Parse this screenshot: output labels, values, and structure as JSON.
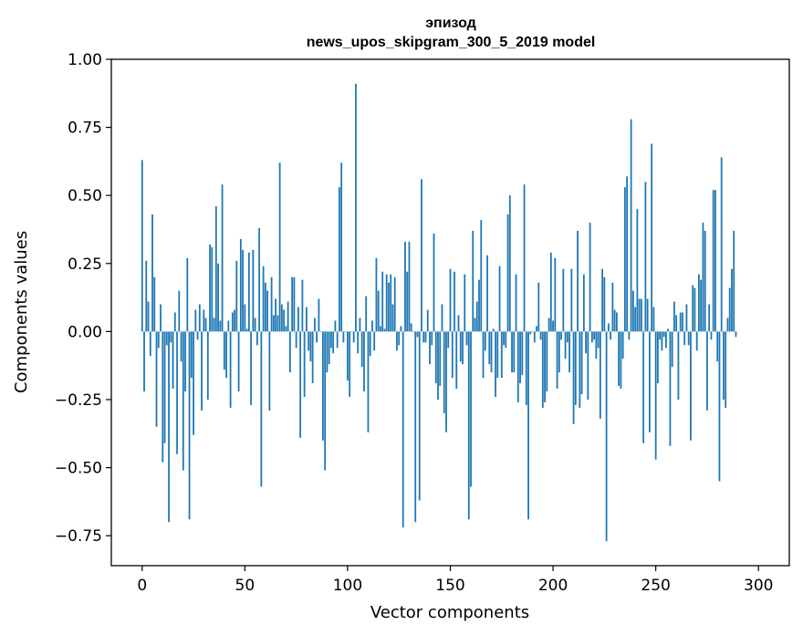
{
  "chart_data": {
    "type": "bar",
    "title_lines": [
      "эпизод",
      "news_upos_skipgram_300_5_2019 model"
    ],
    "xlabel": "Vector components",
    "ylabel": "Components values",
    "xlim": [
      -15,
      315
    ],
    "ylim": [
      -0.86,
      1.0
    ],
    "xticks": [
      0,
      50,
      100,
      150,
      200,
      250,
      300
    ],
    "xtick_labels": [
      "0",
      "50",
      "100",
      "150",
      "200",
      "250",
      "300"
    ],
    "yticks": [
      1.0,
      0.75,
      0.5,
      0.25,
      0.0,
      -0.25,
      -0.5,
      -0.75
    ],
    "ytick_labels": [
      "1.00",
      "0.75",
      "0.50",
      "0.25",
      "0.00",
      "−0.25",
      "−0.50",
      "−0.75"
    ],
    "bar_color": "#1f77b4",
    "grid": false,
    "series": [
      {
        "name": "vector",
        "x_start": 0,
        "values": [
          0.63,
          -0.22,
          0.26,
          0.11,
          -0.09,
          0.43,
          0.2,
          -0.35,
          -0.06,
          0.1,
          -0.48,
          -0.41,
          -0.05,
          -0.7,
          -0.04,
          -0.21,
          0.07,
          -0.45,
          0.15,
          -0.11,
          -0.51,
          -0.22,
          0.27,
          -0.69,
          -0.17,
          -0.38,
          0.08,
          -0.03,
          0.1,
          -0.29,
          0.08,
          0.05,
          -0.25,
          0.32,
          0.31,
          0.05,
          0.46,
          0.25,
          0.04,
          0.54,
          -0.14,
          -0.17,
          0.04,
          -0.28,
          0.07,
          0.08,
          0.26,
          -0.22,
          0.34,
          0.3,
          0.1,
          0.01,
          0.29,
          -0.27,
          0.3,
          0.05,
          -0.05,
          0.38,
          -0.57,
          0.24,
          0.18,
          0.15,
          -0.29,
          0.2,
          0.06,
          0.12,
          0.06,
          0.62,
          0.1,
          0.08,
          0.02,
          0.11,
          -0.15,
          0.2,
          0.2,
          -0.06,
          0.09,
          -0.39,
          0.19,
          -0.24,
          0.09,
          -0.07,
          -0.11,
          -0.19,
          0.05,
          -0.04,
          0.12,
          0.0,
          -0.4,
          -0.51,
          -0.15,
          -0.12,
          -0.06,
          -0.08,
          0.04,
          -0.06,
          0.53,
          0.62,
          -0.04,
          0.0,
          -0.18,
          -0.24,
          0.0,
          -0.04,
          0.91,
          -0.08,
          0.05,
          -0.13,
          -0.22,
          0.13,
          -0.37,
          -0.09,
          0.04,
          -0.07,
          0.27,
          0.15,
          0.02,
          0.22,
          0.01,
          0.21,
          0.18,
          0.21,
          0.1,
          0.2,
          -0.07,
          -0.05,
          0.02,
          -0.72,
          0.33,
          0.22,
          0.33,
          0.03,
          0.0,
          -0.7,
          -0.02,
          -0.62,
          0.56,
          -0.04,
          -0.04,
          0.08,
          -0.12,
          -0.05,
          0.36,
          -0.19,
          -0.25,
          -0.2,
          0.1,
          -0.3,
          -0.37,
          -0.06,
          0.23,
          -0.17,
          0.22,
          -0.21,
          0.06,
          -0.11,
          -0.12,
          0.21,
          -0.05,
          -0.69,
          -0.57,
          0.37,
          0.05,
          0.11,
          0.19,
          0.41,
          -0.17,
          -0.07,
          0.28,
          -0.12,
          -0.15,
          0.01,
          -0.24,
          -0.17,
          0.24,
          -0.17,
          -0.05,
          -0.06,
          0.43,
          0.5,
          -0.15,
          -0.15,
          0.21,
          -0.26,
          -0.19,
          -0.16,
          0.54,
          -0.27,
          -0.69,
          -0.01,
          0.0,
          -0.04,
          0.02,
          0.18,
          -0.03,
          -0.28,
          -0.26,
          -0.22,
          0.05,
          0.29,
          0.04,
          0.27,
          -0.21,
          -0.15,
          -0.03,
          0.23,
          -0.1,
          -0.04,
          -0.15,
          0.23,
          -0.34,
          -0.27,
          0.37,
          -0.28,
          -0.23,
          0.21,
          -0.08,
          -0.25,
          0.4,
          -0.04,
          -0.03,
          -0.1,
          -0.06,
          -0.32,
          0.23,
          0.2,
          -0.77,
          0.03,
          -0.03,
          0.18,
          0.08,
          0.07,
          -0.2,
          -0.21,
          -0.1,
          0.53,
          0.57,
          -0.03,
          0.78,
          0.15,
          0.09,
          0.45,
          0.12,
          0.12,
          -0.41,
          0.55,
          0.12,
          -0.37,
          0.69,
          0.09,
          -0.47,
          -0.19,
          -0.03,
          -0.07,
          -0.02,
          -0.06,
          0.01,
          -0.42,
          -0.13,
          0.11,
          0.06,
          -0.25,
          0.07,
          0.07,
          -0.05,
          0.1,
          -0.05,
          -0.4,
          0.17,
          0.16,
          -0.07,
          0.21,
          0.19,
          0.4,
          0.37,
          -0.29,
          0.1,
          -0.03,
          0.52,
          0.52,
          -0.11,
          -0.55,
          0.64,
          -0.25,
          -0.28,
          0.05,
          0.16,
          0.23,
          0.37,
          -0.02
        ]
      }
    ]
  }
}
